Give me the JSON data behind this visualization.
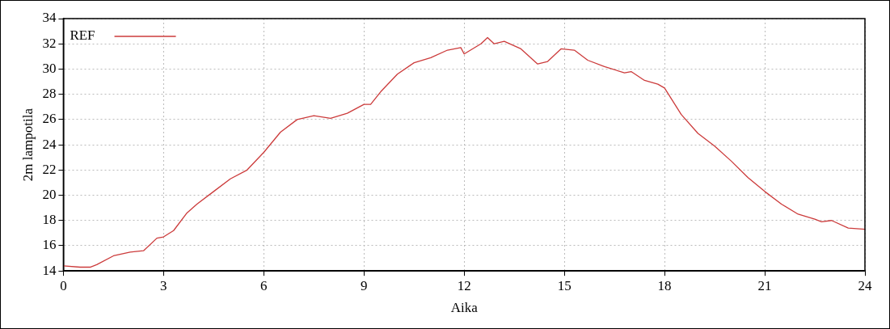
{
  "chart_data": {
    "type": "line",
    "xlabel": "Aika",
    "ylabel": "2m lampotila",
    "series": [
      {
        "name": "REF",
        "color": "#cc3b3b",
        "x": [
          0,
          0.5,
          0.8,
          1,
          1.5,
          2,
          2.4,
          2.8,
          3,
          3.3,
          3.7,
          4,
          4.5,
          5,
          5.5,
          6,
          6.5,
          7,
          7.5,
          8,
          8.5,
          9,
          9.2,
          9.5,
          10,
          10.5,
          11,
          11.5,
          11.9,
          12,
          12.5,
          12.7,
          12.9,
          13.2,
          13.7,
          14.2,
          14.5,
          14.9,
          15.3,
          15.7,
          16.2,
          16.8,
          17,
          17.4,
          17.8,
          18,
          18.5,
          19,
          19.5,
          20,
          20.5,
          21,
          21.5,
          22,
          22.5,
          22.7,
          23,
          23.5,
          24
        ],
        "values": [
          14.4,
          14.3,
          14.3,
          14.5,
          15.2,
          15.5,
          15.6,
          16.6,
          16.7,
          17.2,
          18.6,
          19.3,
          20.3,
          21.3,
          22.0,
          23.4,
          25.0,
          26.0,
          26.3,
          26.1,
          26.5,
          27.2,
          27.2,
          28.2,
          29.6,
          30.5,
          30.9,
          31.5,
          31.7,
          31.2,
          32.0,
          32.5,
          32.0,
          32.2,
          31.6,
          30.4,
          30.6,
          31.6,
          31.5,
          30.7,
          30.2,
          29.7,
          29.8,
          29.1,
          28.8,
          28.5,
          26.4,
          24.9,
          23.9,
          22.7,
          21.4,
          20.3,
          19.3,
          18.5,
          18.1,
          17.9,
          18.0,
          17.4,
          17.3
        ]
      }
    ],
    "xlim": [
      0,
      24
    ],
    "xticks": [
      0,
      3,
      6,
      9,
      12,
      15,
      18,
      21,
      24
    ],
    "ylim": [
      14,
      34
    ],
    "yticks": [
      14,
      16,
      18,
      20,
      22,
      24,
      26,
      28,
      30,
      32,
      34
    ],
    "grid": true,
    "legend": "top left",
    "marker": "none",
    "line_style": "solid"
  }
}
